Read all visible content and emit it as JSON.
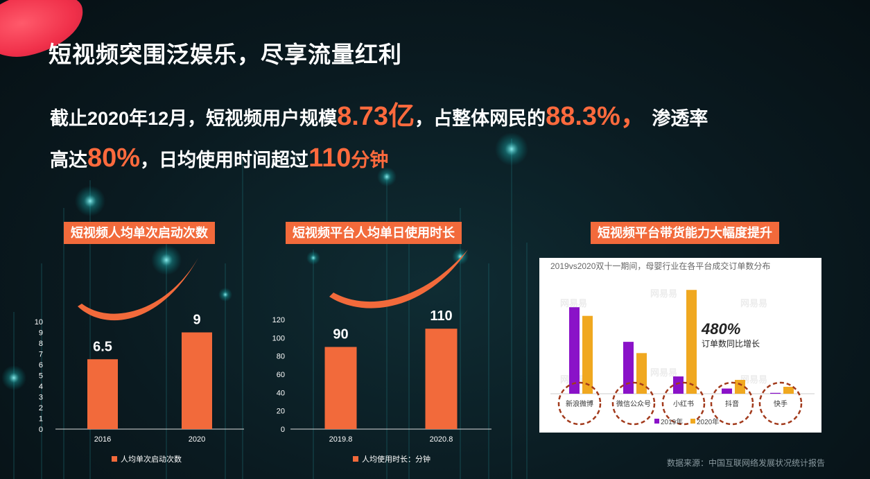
{
  "header": {
    "title": "短视频突围泛娱乐，尽享流量红利"
  },
  "headline": {
    "part1": "截止2020年12月，短视频用户规模",
    "users": "8.73亿",
    "part2": "，占整体网民的",
    "share": "88.3%，",
    "part3": " 渗透率",
    "part4": "高达",
    "penetration": "80%",
    "part5": "，日均使用时间超过",
    "minutes": "110",
    "minutes_unit": "分钟"
  },
  "source_note": "数据来源：中国互联网络发展状况统计报告",
  "colors": {
    "accent": "#f26a3b",
    "purple": "#8a12c8",
    "gold": "#f0a820"
  },
  "chart_data": [
    {
      "type": "bar",
      "title": "短视频人均单次启动次数",
      "categories": [
        "2016",
        "2020"
      ],
      "series": [
        {
          "name": "人均单次启动次数",
          "values": [
            6.5,
            9
          ]
        }
      ],
      "ylim": [
        0,
        10
      ],
      "yticks": [
        "0",
        "1",
        "2",
        "3",
        "4",
        "5",
        "6",
        "7",
        "8",
        "9",
        "10"
      ],
      "data_labels": [
        "6.5",
        "9"
      ],
      "legend": "bottom"
    },
    {
      "type": "bar",
      "title": "短视频平台人均单日使用时长",
      "categories": [
        "2019.8",
        "2020.8"
      ],
      "series": [
        {
          "name": "人均使用时长：分钟",
          "values": [
            90,
            110
          ]
        }
      ],
      "ylim": [
        0,
        120
      ],
      "yticks": [
        "0",
        "20",
        "40",
        "60",
        "80",
        "100",
        "120"
      ],
      "data_labels": [
        "90",
        "110"
      ],
      "legend": "bottom"
    },
    {
      "type": "bar",
      "title": "短视频平台带货能力大幅度提升",
      "subtitle": "2019vs2020双十一期间，母婴行业在各平台成交订单数分布",
      "categories": [
        "新浪微博",
        "微信公众号",
        "小红书",
        "抖音",
        "快手"
      ],
      "series": [
        {
          "name": "2019年",
          "values": [
            100,
            60,
            20,
            6,
            1
          ]
        },
        {
          "name": "2020年",
          "values": [
            90,
            47,
            120,
            16,
            8
          ]
        }
      ],
      "ylim": [
        0,
        125
      ],
      "annotation": {
        "value": "480%",
        "text": "订单数同比增长"
      },
      "watermark": "网易易",
      "legend": "bottom"
    }
  ]
}
